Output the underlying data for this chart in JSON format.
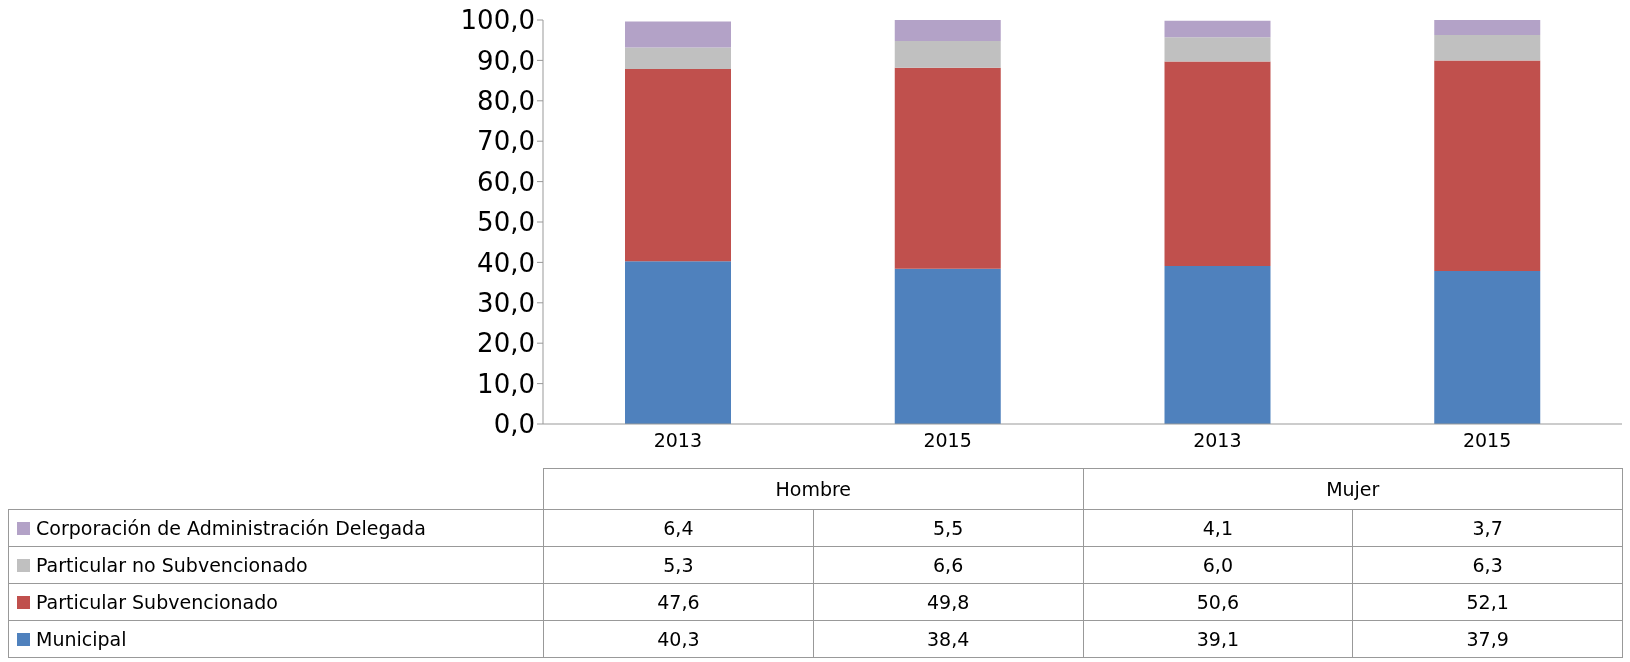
{
  "chart_data": {
    "type": "bar",
    "stacked": true,
    "categories": [
      "2013",
      "2015",
      "2013",
      "2015"
    ],
    "annotations": [
      "Hombre",
      "Mujer"
    ],
    "series": [
      {
        "name": "Municipal",
        "color": "#4f81bd",
        "values": [
          40.3,
          38.4,
          39.1,
          37.9
        ],
        "value_labels": [
          "40,3",
          "38,4",
          "39,1",
          "37,9"
        ]
      },
      {
        "name": "Particular Subvencionado",
        "color": "#c0504d",
        "values": [
          47.6,
          49.8,
          50.6,
          52.1
        ],
        "value_labels": [
          "47,6",
          "49,8",
          "50,6",
          "52,1"
        ]
      },
      {
        "name": "Particular no Subvencionado",
        "color": "#c0c0c0",
        "values": [
          5.3,
          6.6,
          6.0,
          6.3
        ],
        "value_labels": [
          "5,3",
          "6,6",
          "6,0",
          "6,3"
        ]
      },
      {
        "name": "Corporación de Administración Delegada",
        "color": "#b3a2c7",
        "values": [
          6.4,
          5.5,
          4.1,
          3.7
        ],
        "value_labels": [
          "6,4",
          "5,5",
          "4,1",
          "3,7"
        ]
      }
    ],
    "ylim": [
      0,
      100
    ],
    "yticks": [
      {
        "value": 0,
        "label": "0,0"
      },
      {
        "value": 10,
        "label": "10,0"
      },
      {
        "value": 20,
        "label": "20,0"
      },
      {
        "value": 30,
        "label": "30,0"
      },
      {
        "value": 40,
        "label": "40,0"
      },
      {
        "value": 50,
        "label": "50,0"
      },
      {
        "value": 60,
        "label": "60,0"
      },
      {
        "value": 70,
        "label": "70,0"
      },
      {
        "value": 80,
        "label": "80,0"
      },
      {
        "value": 90,
        "label": "90,0"
      },
      {
        "value": 100,
        "label": "100,0"
      }
    ],
    "legend": "bottom left",
    "grid": false
  }
}
